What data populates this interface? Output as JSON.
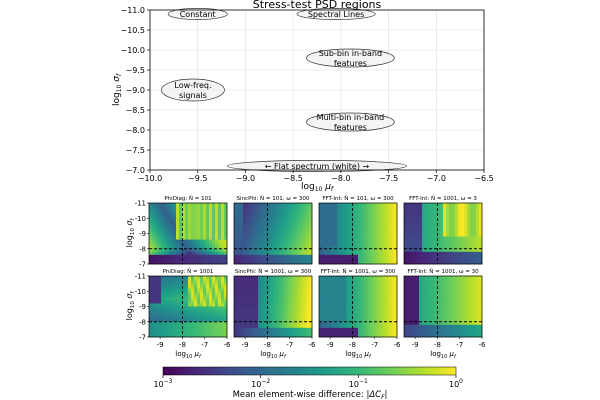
{
  "chart_data": [
    {
      "type": "scatter",
      "title": "Stress-test PSD regions",
      "xlabel": "log10 μf",
      "ylabel": "log10 σf",
      "xlim": [
        -10.0,
        -6.5
      ],
      "ylim": [
        -7.0,
        -11.0
      ],
      "xticks": [
        "−10.0",
        "−9.5",
        "−9.0",
        "−8.5",
        "−8.0",
        "−7.5",
        "−7.0",
        "−6.5"
      ],
      "yticks": [
        "−11.0",
        "−10.5",
        "−10.0",
        "−9.5",
        "−9.0",
        "−8.5",
        "−8.0",
        "−7.5",
        "−7.0"
      ],
      "grid": true,
      "regions": [
        {
          "label": [
            "Constant"
          ],
          "x": -9.5,
          "y": -10.9,
          "width": 0.62,
          "height": 0.28
        },
        {
          "label": [
            "Spectral Lines"
          ],
          "x": -8.05,
          "y": -10.9,
          "width": 0.82,
          "height": 0.28
        },
        {
          "label": [
            "Sub-bin in-band",
            "features"
          ],
          "x": -7.9,
          "y": -9.8,
          "width": 0.92,
          "height": 0.45
        },
        {
          "label": [
            "Low-freq.",
            "signals"
          ],
          "x": -9.55,
          "y": -9.0,
          "width": 0.66,
          "height": 0.55
        },
        {
          "label": [
            "Multi-bin in-band",
            "features"
          ],
          "x": -7.9,
          "y": -8.2,
          "width": 0.92,
          "height": 0.45
        },
        {
          "label": [
            "← Flat spectrum (white) →"
          ],
          "x": -8.25,
          "y": -7.1,
          "width": 1.88,
          "height": 0.28
        }
      ]
    },
    {
      "type": "heatmap",
      "xlabel": "log10 μf",
      "ylabel": "log10 σf",
      "xlim": [
        -9.5,
        -6
      ],
      "ylim": [
        -7,
        -11
      ],
      "xticks": [
        "-9",
        "-8",
        "-7",
        "-6"
      ],
      "yticks": [
        "-10",
        "-8",
        "-7"
      ],
      "yticks_all": [
        "-11",
        "-10",
        "-9",
        "-8",
        "-7"
      ],
      "reference_lines": {
        "x": -8.0,
        "y": -8.0
      },
      "panels": [
        {
          "title": "PhiDiag: Ñ = 101",
          "pattern": "phidiag101"
        },
        {
          "title": "SincPhi: Ñ = 101, ω = 300",
          "pattern": "sinc101"
        },
        {
          "title": "FFT-Int: Ñ = 101, ω = 300",
          "pattern": "fft300_101"
        },
        {
          "title": "FFT-Int: Ñ = 1001, ω = 3",
          "pattern": "fft3_1001"
        },
        {
          "title": "PhiDiag: Ñ = 1001",
          "pattern": "phidiag1001"
        },
        {
          "title": "SincPhi: Ñ = 1001, ω = 300",
          "pattern": "sinc1001"
        },
        {
          "title": "FFT-Int: Ñ = 1001, ω = 300",
          "pattern": "fft300_1001"
        },
        {
          "title": "FFT-Int: Ñ = 1001, ω = 30",
          "pattern": "fft30_1001"
        }
      ]
    },
    {
      "type": "colorbar",
      "scale": "log",
      "range": [
        0.001,
        1
      ],
      "colormap": "viridis",
      "ticks": [
        {
          "mantissa": "10",
          "exp": "−3"
        },
        {
          "mantissa": "10",
          "exp": "−2"
        },
        {
          "mantissa": "10",
          "exp": "−1"
        },
        {
          "mantissa": "10",
          "exp": "0"
        }
      ],
      "label": "Mean element-wise difference: |ΔC_F|"
    }
  ],
  "colors": {
    "viridis": [
      "#440154",
      "#482878",
      "#3e4a89",
      "#31688e",
      "#26828e",
      "#1f9e89",
      "#35b779",
      "#6ece58",
      "#b5de2b",
      "#fde725"
    ],
    "ellipse_fill": "#ececec",
    "grid": "#dddddd"
  }
}
